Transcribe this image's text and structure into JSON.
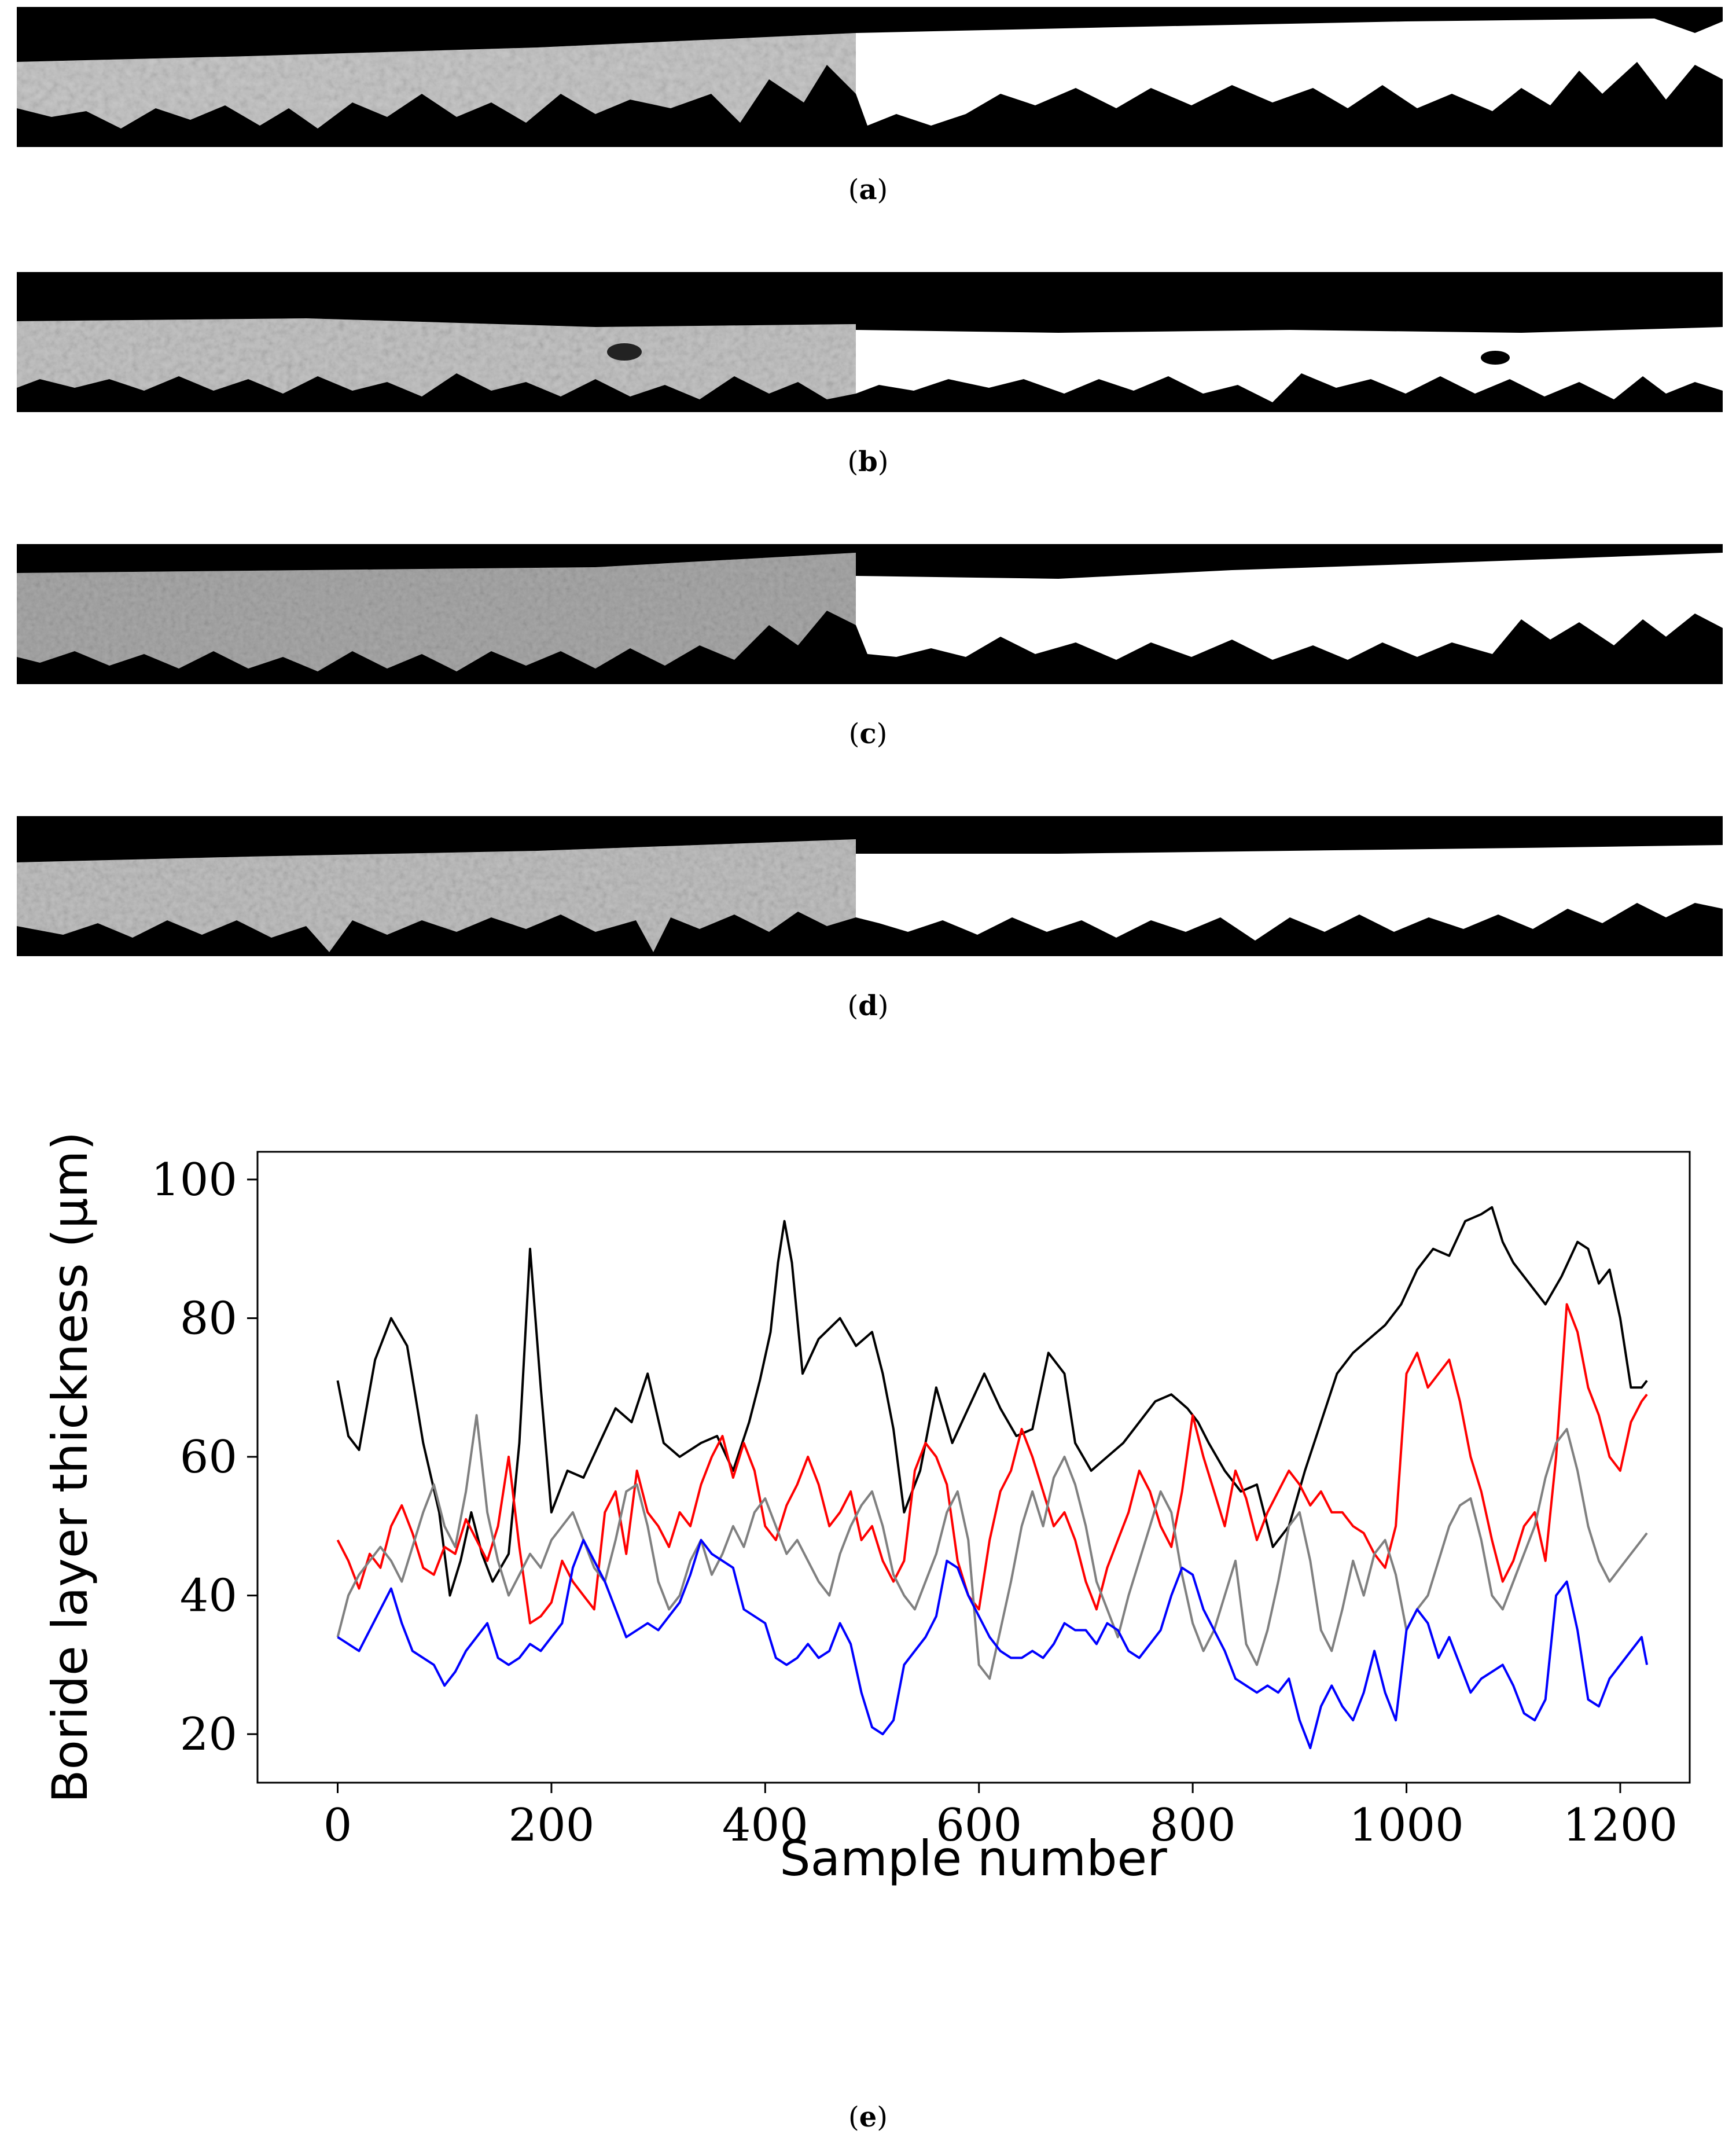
{
  "panels": [
    {
      "caption_open": "(",
      "letter": "a",
      "caption_close": ")"
    },
    {
      "caption_open": "(",
      "letter": "b",
      "caption_close": ")"
    },
    {
      "caption_open": "(",
      "letter": "c",
      "caption_close": ")"
    },
    {
      "caption_open": "(",
      "letter": "d",
      "caption_close": ")"
    }
  ],
  "figure_e": {
    "caption_open": "(",
    "letter": "e",
    "caption_close": ")"
  },
  "chart_data": {
    "type": "line",
    "title": "",
    "xlabel": "Sample number",
    "ylabel": "Boride layer thickness (μm)",
    "xlim": [
      -75,
      1265
    ],
    "ylim": [
      13,
      104
    ],
    "xticks": [
      0,
      200,
      400,
      600,
      800,
      1000,
      1200
    ],
    "yticks": [
      20,
      40,
      60,
      80,
      100
    ],
    "grid": false,
    "series": [
      {
        "name": "black",
        "color": "#000000",
        "x": [
          0,
          10,
          20,
          35,
          50,
          65,
          80,
          95,
          105,
          115,
          125,
          135,
          145,
          160,
          170,
          180,
          190,
          200,
          215,
          230,
          245,
          260,
          275,
          290,
          305,
          320,
          340,
          355,
          370,
          385,
          395,
          405,
          412,
          418,
          425,
          435,
          450,
          470,
          485,
          500,
          510,
          520,
          530,
          545,
          560,
          575,
          590,
          605,
          620,
          635,
          650,
          665,
          680,
          690,
          705,
          720,
          735,
          750,
          765,
          780,
          795,
          805,
          815,
          830,
          845,
          860,
          875,
          890,
          905,
          920,
          935,
          950,
          965,
          980,
          995,
          1010,
          1025,
          1040,
          1055,
          1070,
          1080,
          1090,
          1100,
          1110,
          1120,
          1130,
          1145,
          1160,
          1170,
          1180,
          1190,
          1200,
          1210,
          1220,
          1225
        ],
        "y": [
          71,
          63,
          61,
          74,
          80,
          76,
          62,
          52,
          40,
          45,
          52,
          46,
          42,
          46,
          62,
          90,
          70,
          52,
          58,
          57,
          62,
          67,
          65,
          72,
          62,
          60,
          62,
          63,
          58,
          65,
          71,
          78,
          88,
          94,
          88,
          72,
          77,
          80,
          76,
          78,
          72,
          64,
          52,
          58,
          70,
          62,
          67,
          72,
          67,
          63,
          64,
          75,
          72,
          62,
          58,
          60,
          62,
          65,
          68,
          69,
          67,
          65,
          62,
          58,
          55,
          56,
          47,
          50,
          58,
          65,
          72,
          75,
          77,
          79,
          82,
          87,
          90,
          89,
          94,
          95,
          96,
          91,
          88,
          86,
          84,
          82,
          86,
          91,
          90,
          85,
          87,
          80,
          70,
          70,
          71
        ]
      },
      {
        "name": "red",
        "color": "#ff0000",
        "x": [
          0,
          10,
          20,
          30,
          40,
          50,
          60,
          70,
          80,
          90,
          100,
          110,
          120,
          130,
          140,
          150,
          160,
          170,
          180,
          190,
          200,
          210,
          220,
          230,
          240,
          250,
          260,
          270,
          280,
          290,
          300,
          310,
          320,
          330,
          340,
          350,
          360,
          370,
          380,
          390,
          400,
          410,
          420,
          430,
          440,
          450,
          460,
          470,
          480,
          490,
          500,
          510,
          520,
          530,
          540,
          550,
          560,
          570,
          580,
          590,
          600,
          610,
          620,
          630,
          640,
          650,
          660,
          670,
          680,
          690,
          700,
          710,
          720,
          730,
          740,
          750,
          760,
          770,
          780,
          790,
          800,
          810,
          820,
          830,
          840,
          850,
          860,
          870,
          880,
          890,
          900,
          910,
          920,
          930,
          940,
          950,
          960,
          970,
          980,
          990,
          1000,
          1010,
          1020,
          1030,
          1040,
          1050,
          1060,
          1070,
          1080,
          1090,
          1100,
          1110,
          1120,
          1130,
          1140,
          1150,
          1160,
          1170,
          1180,
          1190,
          1200,
          1210,
          1220,
          1225
        ],
        "y": [
          48,
          45,
          41,
          46,
          44,
          50,
          53,
          49,
          44,
          43,
          47,
          46,
          51,
          48,
          45,
          50,
          60,
          47,
          36,
          37,
          39,
          45,
          42,
          40,
          38,
          52,
          55,
          46,
          58,
          52,
          50,
          47,
          52,
          50,
          56,
          60,
          63,
          57,
          62,
          58,
          50,
          48,
          53,
          56,
          60,
          56,
          50,
          52,
          55,
          48,
          50,
          45,
          42,
          45,
          58,
          62,
          60,
          56,
          45,
          40,
          38,
          48,
          55,
          58,
          64,
          60,
          55,
          50,
          52,
          48,
          42,
          38,
          44,
          48,
          52,
          58,
          55,
          50,
          47,
          55,
          66,
          60,
          55,
          50,
          58,
          54,
          48,
          52,
          55,
          58,
          56,
          53,
          55,
          52,
          52,
          50,
          49,
          46,
          44,
          50,
          72,
          75,
          70,
          72,
          74,
          68,
          60,
          55,
          48,
          42,
          45,
          50,
          52,
          45,
          60,
          82,
          78,
          70,
          66,
          60,
          58,
          65,
          68,
          69
        ]
      },
      {
        "name": "gray",
        "color": "#808080",
        "x": [
          0,
          10,
          20,
          30,
          40,
          50,
          60,
          70,
          80,
          90,
          100,
          110,
          120,
          130,
          140,
          150,
          160,
          170,
          180,
          190,
          200,
          210,
          220,
          230,
          240,
          250,
          260,
          270,
          280,
          290,
          300,
          310,
          320,
          330,
          340,
          350,
          360,
          370,
          380,
          390,
          400,
          410,
          420,
          430,
          440,
          450,
          460,
          470,
          480,
          490,
          500,
          510,
          520,
          530,
          540,
          550,
          560,
          570,
          580,
          590,
          600,
          610,
          620,
          630,
          640,
          650,
          660,
          670,
          680,
          690,
          700,
          710,
          720,
          730,
          740,
          750,
          760,
          770,
          780,
          790,
          800,
          810,
          820,
          830,
          840,
          850,
          860,
          870,
          880,
          890,
          900,
          910,
          920,
          930,
          940,
          950,
          960,
          970,
          980,
          990,
          1000,
          1010,
          1020,
          1030,
          1040,
          1050,
          1060,
          1070,
          1080,
          1090,
          1100,
          1110,
          1120,
          1130,
          1140,
          1150,
          1160,
          1170,
          1180,
          1190,
          1200,
          1210,
          1220,
          1225
        ],
        "y": [
          34,
          40,
          43,
          45,
          47,
          45,
          42,
          47,
          52,
          56,
          50,
          47,
          55,
          66,
          52,
          45,
          40,
          43,
          46,
          44,
          48,
          50,
          52,
          48,
          44,
          42,
          48,
          55,
          56,
          50,
          42,
          38,
          40,
          45,
          48,
          43,
          46,
          50,
          47,
          52,
          54,
          50,
          46,
          48,
          45,
          42,
          40,
          46,
          50,
          53,
          55,
          50,
          43,
          40,
          38,
          42,
          46,
          52,
          55,
          48,
          30,
          28,
          35,
          42,
          50,
          55,
          50,
          57,
          60,
          56,
          50,
          42,
          38,
          34,
          40,
          45,
          50,
          55,
          52,
          43,
          36,
          32,
          35,
          40,
          45,
          33,
          30,
          35,
          42,
          50,
          52,
          45,
          35,
          32,
          38,
          45,
          40,
          46,
          48,
          43,
          35,
          38,
          40,
          45,
          50,
          53,
          54,
          48,
          40,
          38,
          42,
          46,
          50,
          57,
          62,
          64,
          58,
          50,
          45,
          42,
          44,
          46,
          48,
          49
        ]
      },
      {
        "name": "blue",
        "color": "#0000ff",
        "x": [
          0,
          10,
          20,
          30,
          40,
          50,
          60,
          70,
          80,
          90,
          100,
          110,
          120,
          130,
          140,
          150,
          160,
          170,
          180,
          190,
          200,
          210,
          220,
          230,
          240,
          250,
          260,
          270,
          280,
          290,
          300,
          310,
          320,
          330,
          340,
          350,
          360,
          370,
          380,
          390,
          400,
          410,
          420,
          430,
          440,
          450,
          460,
          470,
          480,
          490,
          500,
          510,
          520,
          530,
          540,
          550,
          560,
          570,
          580,
          590,
          600,
          610,
          620,
          630,
          640,
          650,
          660,
          670,
          680,
          690,
          700,
          710,
          720,
          730,
          740,
          750,
          760,
          770,
          780,
          790,
          800,
          810,
          820,
          830,
          840,
          850,
          860,
          870,
          880,
          890,
          900,
          910,
          920,
          930,
          940,
          950,
          960,
          970,
          980,
          990,
          1000,
          1010,
          1020,
          1030,
          1040,
          1050,
          1060,
          1070,
          1080,
          1090,
          1100,
          1110,
          1120,
          1130,
          1140,
          1150,
          1160,
          1170,
          1180,
          1190,
          1200,
          1210,
          1220,
          1225
        ],
        "y": [
          34,
          33,
          32,
          35,
          38,
          41,
          36,
          32,
          31,
          30,
          27,
          29,
          32,
          34,
          36,
          31,
          30,
          31,
          33,
          32,
          34,
          36,
          44,
          48,
          45,
          42,
          38,
          34,
          35,
          36,
          35,
          37,
          39,
          43,
          48,
          46,
          45,
          44,
          38,
          37,
          36,
          31,
          30,
          31,
          33,
          31,
          32,
          36,
          33,
          26,
          21,
          20,
          22,
          30,
          32,
          34,
          37,
          45,
          44,
          40,
          37,
          34,
          32,
          31,
          31,
          32,
          31,
          33,
          36,
          35,
          35,
          33,
          36,
          35,
          32,
          31,
          33,
          35,
          40,
          44,
          43,
          38,
          35,
          32,
          28,
          27,
          26,
          27,
          26,
          28,
          22,
          18,
          24,
          27,
          24,
          22,
          26,
          32,
          26,
          22,
          35,
          38,
          36,
          31,
          34,
          30,
          26,
          28,
          29,
          30,
          27,
          23,
          22,
          25,
          40,
          42,
          35,
          25,
          24,
          28,
          30,
          32,
          34,
          30
        ]
      }
    ]
  }
}
